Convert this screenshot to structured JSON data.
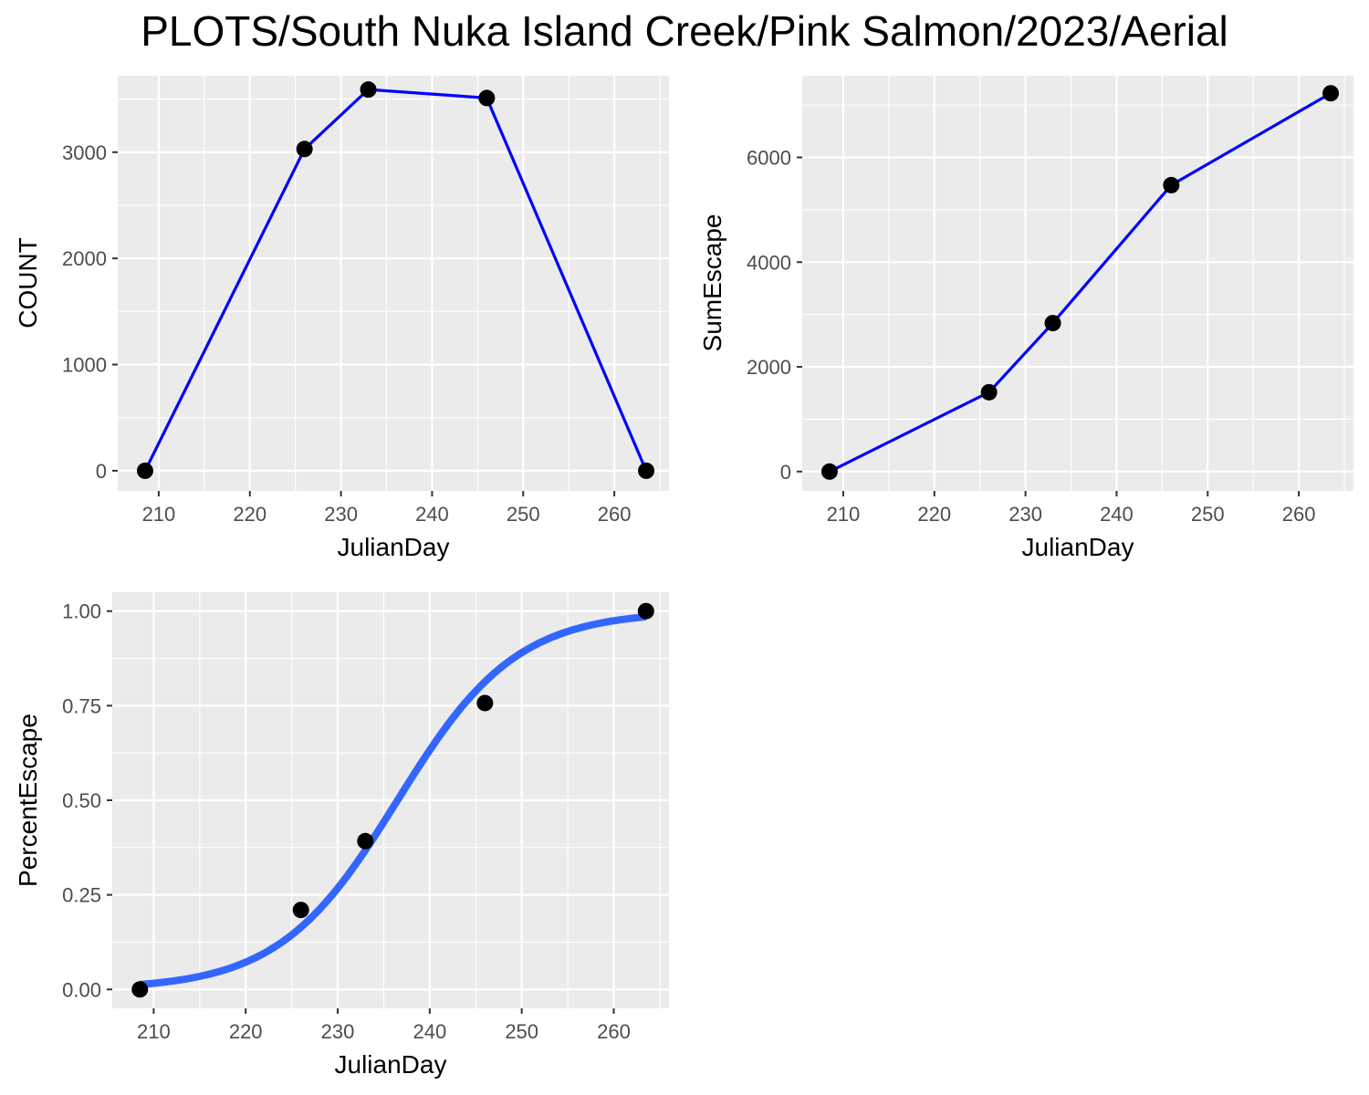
{
  "title": "PLOTS/South Nuka Island Creek/Pink Salmon/2023/Aerial",
  "colors": {
    "line": "#0000ff",
    "fit_line": "#3366ff",
    "point": "#000000",
    "panel": "#ebebeb",
    "grid": "#ffffff"
  },
  "chart_data": [
    {
      "type": "line",
      "xlabel": "JulianDay",
      "ylabel": "COUNT",
      "xlim": [
        205.5,
        266
      ],
      "ylim": [
        -190,
        3720
      ],
      "xticks": [
        210,
        220,
        230,
        240,
        250,
        260
      ],
      "yticks": [
        0,
        1000,
        2000,
        3000
      ],
      "x": [
        208.5,
        226,
        233,
        246,
        263.5
      ],
      "y": [
        0,
        3030,
        3590,
        3510,
        0
      ],
      "series_name": "COUNT"
    },
    {
      "type": "line",
      "xlabel": "JulianDay",
      "ylabel": "SumEscape",
      "xlim": [
        205.5,
        266
      ],
      "ylim": [
        -370,
        7560
      ],
      "xticks": [
        210,
        220,
        230,
        240,
        250,
        260
      ],
      "yticks": [
        0,
        2000,
        4000,
        6000
      ],
      "x": [
        208.5,
        226,
        233,
        246,
        263.5
      ],
      "y": [
        0,
        1515,
        2835,
        5470,
        7225
      ],
      "series_name": "SumEscape"
    },
    {
      "type": "scatter",
      "xlabel": "JulianDay",
      "ylabel": "PercentEscape",
      "xlim": [
        205.5,
        266
      ],
      "ylim": [
        -0.05,
        1.05
      ],
      "xticks": [
        210,
        220,
        230,
        240,
        250,
        260
      ],
      "yticks": [
        0,
        0.25,
        0.5,
        0.75,
        1
      ],
      "ytick_labels": [
        "0.00",
        "0.25",
        "0.50",
        "0.75",
        "1.00"
      ],
      "x": [
        208.5,
        226,
        233,
        246,
        263.5
      ],
      "y": [
        0,
        0.21,
        0.392,
        0.757,
        1.0
      ],
      "fit": {
        "type": "logistic",
        "x0": 236.5,
        "k": 0.155,
        "x": [
          208.5,
          212,
          216,
          220,
          224,
          228,
          232,
          236,
          240,
          244,
          248,
          252,
          256,
          260,
          263.5
        ],
        "y": [
          0.013,
          0.022,
          0.04,
          0.071,
          0.126,
          0.211,
          0.332,
          0.481,
          0.632,
          0.762,
          0.856,
          0.917,
          0.953,
          0.974,
          0.984
        ]
      }
    }
  ]
}
